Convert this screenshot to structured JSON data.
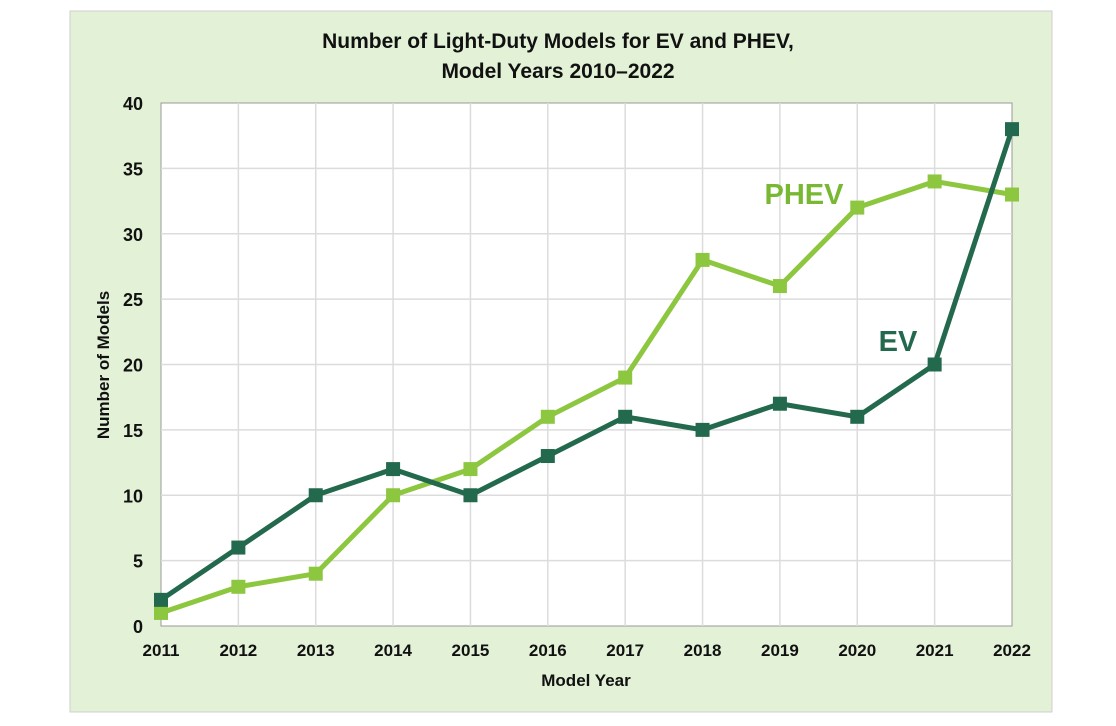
{
  "chart_data": {
    "type": "line",
    "title": "Number of Light-Duty Models for EV and PHEV,",
    "subtitle": "Model Years 2010–2022",
    "xlabel": "Model Year",
    "ylabel": "Number of Models",
    "categories": [
      "2011",
      "2012",
      "2013",
      "2014",
      "2015",
      "2016",
      "2017",
      "2018",
      "2019",
      "2020",
      "2021",
      "2022"
    ],
    "ylim": [
      0,
      40
    ],
    "yticks": [
      0,
      5,
      10,
      15,
      20,
      25,
      30,
      35,
      40
    ],
    "grid": true,
    "legend": "inline labels",
    "series": [
      {
        "name": "EV",
        "color": "#23694d",
        "values": [
          2,
          6,
          10,
          12,
          10,
          13,
          16,
          15,
          17,
          16,
          20,
          38
        ]
      },
      {
        "name": "PHEV",
        "color": "#8dc63f",
        "values": [
          1,
          3,
          4,
          10,
          12,
          16,
          19,
          28,
          26,
          32,
          34,
          33
        ]
      }
    ],
    "background_color": "#e3f2d7"
  }
}
